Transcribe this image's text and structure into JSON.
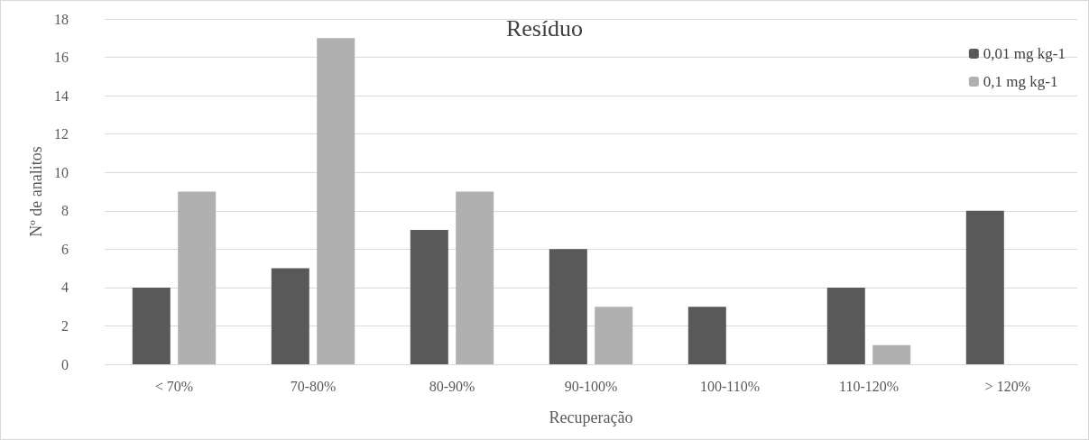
{
  "chart_data": {
    "type": "bar",
    "title": "Resíduo",
    "xlabel": "Recuperação",
    "ylabel": "Nº de analitos",
    "categories": [
      "< 70%",
      "70-80%",
      "80-90%",
      "90-100%",
      "100-110%",
      "110-120%",
      "> 120%"
    ],
    "series": [
      {
        "name": "0,01 mg kg-1",
        "color": "#595959",
        "values": [
          4,
          5,
          7,
          6,
          3,
          4,
          8
        ]
      },
      {
        "name": "0,1 mg kg-1",
        "color": "#b0b0b0",
        "values": [
          9,
          17,
          9,
          3,
          0,
          1,
          0
        ]
      }
    ],
    "ylim": [
      0,
      18
    ],
    "yticks": [
      0,
      2,
      4,
      6,
      8,
      10,
      12,
      14,
      16,
      18
    ],
    "grid": "y",
    "legend": "top right"
  }
}
